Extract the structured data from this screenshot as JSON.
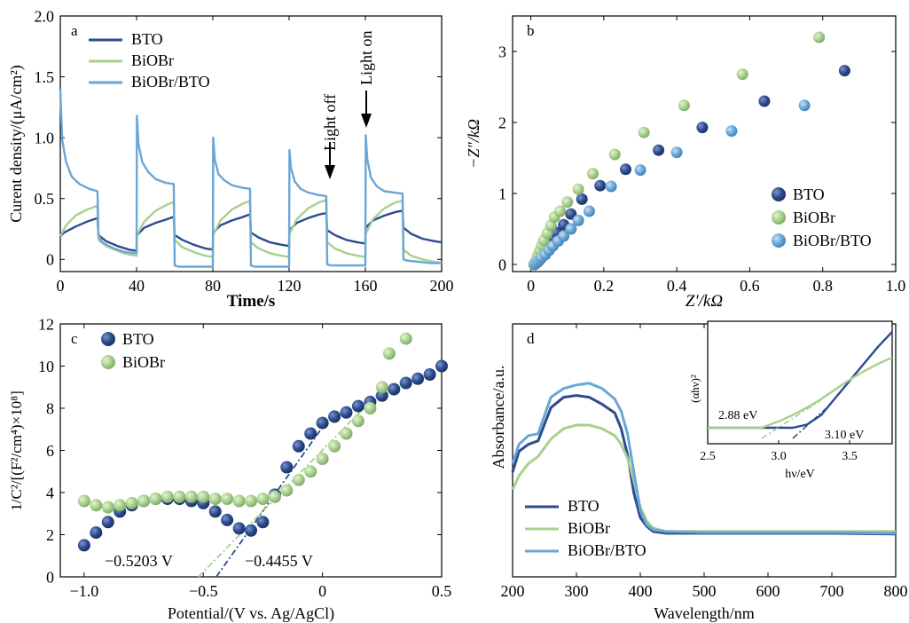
{
  "colors": {
    "bto": "#2d4b8e",
    "biobr": "#a8d08d",
    "composite": "#6aa6d6"
  },
  "chart_data": [
    {
      "panel": "a",
      "type": "line",
      "xlabel": "Time/s",
      "ylabel": "Curent density/(μA/cm²)",
      "xlim": [
        0,
        200
      ],
      "ylim": [
        -0.1,
        2.0
      ],
      "xticks": [
        "0",
        "40",
        "80",
        "120",
        "160",
        "200"
      ],
      "yticks": [
        "0",
        "0.5",
        "1.0",
        "1.5",
        "2.0"
      ],
      "legend": {
        "position": "top-left",
        "entries": [
          "BTO",
          "BiOBr",
          "BiOBr/BTO"
        ]
      },
      "annotations": [
        "Light off",
        "Light on"
      ],
      "series": [
        {
          "name": "BTO",
          "x": [
            0,
            2,
            8,
            14,
            19.5,
            20,
            24,
            30,
            36,
            40,
            40.2,
            44,
            50,
            56,
            59.5,
            60,
            64,
            70,
            76,
            80,
            80.2,
            84,
            90,
            96,
            99.5,
            100,
            104,
            110,
            116,
            120,
            120.2,
            124,
            130,
            136,
            139.5,
            140,
            144,
            150,
            156,
            160,
            160.2,
            164,
            170,
            176,
            179.5,
            180,
            184,
            190,
            196,
            200
          ],
          "y": [
            0.19,
            0.22,
            0.27,
            0.31,
            0.34,
            0.2,
            0.15,
            0.11,
            0.08,
            0.07,
            0.2,
            0.26,
            0.3,
            0.33,
            0.35,
            0.2,
            0.16,
            0.12,
            0.09,
            0.08,
            0.22,
            0.28,
            0.32,
            0.35,
            0.37,
            0.22,
            0.18,
            0.14,
            0.12,
            0.11,
            0.24,
            0.3,
            0.34,
            0.37,
            0.38,
            0.24,
            0.2,
            0.16,
            0.14,
            0.13,
            0.26,
            0.32,
            0.36,
            0.39,
            0.4,
            0.26,
            0.21,
            0.17,
            0.15,
            0.14
          ]
        },
        {
          "name": "BiOBr",
          "x": [
            0,
            3,
            8,
            14,
            19.5,
            20,
            24,
            30,
            36,
            40,
            40.2,
            44,
            50,
            56,
            59.5,
            60,
            64,
            70,
            76,
            80,
            80.2,
            84,
            90,
            96,
            99.5,
            100,
            104,
            110,
            116,
            120,
            120.2,
            124,
            130,
            136,
            139.5,
            140,
            144,
            150,
            156,
            160,
            160.2,
            164,
            170,
            176,
            179.5,
            180,
            184,
            190,
            196,
            200
          ],
          "y": [
            0.19,
            0.28,
            0.36,
            0.41,
            0.44,
            0.16,
            0.11,
            0.07,
            0.04,
            0.03,
            0.2,
            0.31,
            0.4,
            0.45,
            0.47,
            0.16,
            0.1,
            0.06,
            0.03,
            0.02,
            0.2,
            0.32,
            0.41,
            0.46,
            0.48,
            0.14,
            0.09,
            0.05,
            0.03,
            0.02,
            0.21,
            0.33,
            0.42,
            0.47,
            0.49,
            0.14,
            0.09,
            0.05,
            0.03,
            0.02,
            0.21,
            0.33,
            0.42,
            0.47,
            0.48,
            0.08,
            0.03,
            0.0,
            -0.02,
            -0.03
          ]
        },
        {
          "name": "BiOBr/BTO",
          "x": [
            0,
            1,
            3,
            6,
            10,
            15,
            19.5,
            20,
            22,
            28,
            34,
            40,
            40.2,
            41,
            43,
            46,
            50,
            55,
            59.5,
            60,
            62,
            68,
            74,
            80,
            80.2,
            81,
            83,
            86,
            90,
            95,
            99.5,
            100,
            102,
            108,
            114,
            120,
            120.2,
            121,
            123,
            126,
            130,
            135,
            139.5,
            140,
            142,
            148,
            154,
            160,
            160.2,
            161,
            163,
            166,
            170,
            175,
            179.5,
            180,
            182,
            188,
            194,
            200
          ],
          "y": [
            1.4,
            0.98,
            0.8,
            0.68,
            0.62,
            0.58,
            0.56,
            0.2,
            0.14,
            0.09,
            0.06,
            0.05,
            1.18,
            0.95,
            0.8,
            0.72,
            0.66,
            0.63,
            0.62,
            -0.05,
            -0.06,
            -0.06,
            -0.06,
            -0.06,
            1.0,
            0.82,
            0.7,
            0.65,
            0.61,
            0.59,
            0.58,
            -0.05,
            -0.06,
            -0.06,
            -0.06,
            -0.06,
            0.9,
            0.75,
            0.64,
            0.58,
            0.55,
            0.53,
            0.52,
            -0.04,
            -0.05,
            -0.05,
            -0.05,
            -0.05,
            1.02,
            0.82,
            0.67,
            0.6,
            0.56,
            0.55,
            0.54,
            0.0,
            -0.01,
            -0.02,
            -0.03,
            -0.03
          ]
        }
      ]
    },
    {
      "panel": "b",
      "type": "scatter",
      "xlabel": "Z′/kΩ",
      "ylabel": "−Z″/kΩ",
      "xlim": [
        -0.05,
        1.0
      ],
      "ylim": [
        -0.1,
        3.5
      ],
      "xticks": [
        "0",
        "0.2",
        "0.4",
        "0.6",
        "0.8",
        "1.0"
      ],
      "yticks": [
        "0",
        "1",
        "2",
        "3"
      ],
      "legend": {
        "position": "bottom-right",
        "entries": [
          "BTO",
          "BiOBr",
          "BiOBr/BTO"
        ]
      },
      "series": [
        {
          "name": "BTO",
          "x": [
            0.01,
            0.015,
            0.02,
            0.025,
            0.03,
            0.035,
            0.04,
            0.05,
            0.06,
            0.07,
            0.09,
            0.11,
            0.14,
            0.19,
            0.26,
            0.35,
            0.47,
            0.64,
            0.86
          ],
          "y": [
            0.0,
            0.02,
            0.05,
            0.09,
            0.13,
            0.17,
            0.22,
            0.29,
            0.37,
            0.45,
            0.56,
            0.71,
            0.92,
            1.11,
            1.34,
            1.61,
            1.93,
            2.3,
            2.73
          ]
        },
        {
          "name": "BiOBr",
          "x": [
            0.008,
            0.012,
            0.016,
            0.02,
            0.025,
            0.03,
            0.035,
            0.045,
            0.055,
            0.065,
            0.08,
            0.1,
            0.13,
            0.17,
            0.23,
            0.31,
            0.42,
            0.58,
            0.79
          ],
          "y": [
            0.0,
            0.03,
            0.08,
            0.14,
            0.2,
            0.27,
            0.34,
            0.44,
            0.55,
            0.67,
            0.75,
            0.88,
            1.06,
            1.28,
            1.55,
            1.86,
            2.24,
            2.68,
            3.2
          ]
        },
        {
          "name": "BiOBr/BTO",
          "x": [
            0.01,
            0.015,
            0.02,
            0.025,
            0.03,
            0.04,
            0.05,
            0.06,
            0.075,
            0.09,
            0.11,
            0.13,
            0.16,
            0.22,
            0.3,
            0.4,
            0.55,
            0.75
          ],
          "y": [
            0.0,
            0.02,
            0.04,
            0.07,
            0.1,
            0.14,
            0.2,
            0.26,
            0.33,
            0.4,
            0.5,
            0.62,
            0.75,
            1.1,
            1.33,
            1.58,
            1.88,
            2.24
          ]
        }
      ]
    },
    {
      "panel": "c",
      "type": "scatter",
      "xlabel": "Potential/(V vs. Ag/AgCl)",
      "ylabel": "1/C²/[(F²/cm⁴)×10⁸]",
      "xlim": [
        -1.1,
        0.5
      ],
      "ylim": [
        0,
        12
      ],
      "xticks": [
        "−1.0",
        "−0.5",
        "0",
        "0.5"
      ],
      "yticks": [
        "0",
        "2",
        "4",
        "6",
        "8",
        "10",
        "12"
      ],
      "legend": {
        "position": "top-left",
        "entries": [
          "BTO",
          "BiOBr"
        ]
      },
      "annotations": [
        "−0.5203 V",
        "−0.4455 V"
      ],
      "fits": [
        {
          "series": "BTO",
          "x": [
            -0.4455,
            0.05
          ],
          "y": [
            0,
            7.9
          ]
        },
        {
          "series": "BiOBr",
          "x": [
            -0.5203,
            0.25
          ],
          "y": [
            0,
            8.9
          ]
        }
      ],
      "series": [
        {
          "name": "BTO",
          "x": [
            -1.0,
            -0.95,
            -0.9,
            -0.85,
            -0.8,
            -0.75,
            -0.7,
            -0.65,
            -0.6,
            -0.55,
            -0.5,
            -0.45,
            -0.4,
            -0.35,
            -0.3,
            -0.25,
            -0.2,
            -0.15,
            -0.1,
            -0.05,
            0.0,
            0.05,
            0.1,
            0.15,
            0.2,
            0.25,
            0.3,
            0.35,
            0.4,
            0.45,
            0.5
          ],
          "y": [
            1.5,
            2.1,
            2.6,
            3.1,
            3.4,
            3.6,
            3.7,
            3.7,
            3.7,
            3.6,
            3.5,
            3.1,
            2.7,
            2.3,
            2.2,
            2.6,
            3.9,
            5.2,
            6.2,
            6.8,
            7.3,
            7.6,
            7.8,
            8.1,
            8.3,
            8.6,
            8.9,
            9.2,
            9.4,
            9.6,
            10.0
          ]
        },
        {
          "name": "BiOBr",
          "x": [
            -1.0,
            -0.95,
            -0.9,
            -0.85,
            -0.8,
            -0.75,
            -0.7,
            -0.65,
            -0.6,
            -0.55,
            -0.5,
            -0.45,
            -0.4,
            -0.35,
            -0.3,
            -0.25,
            -0.2,
            -0.15,
            -0.1,
            -0.05,
            0.0,
            0.05,
            0.1,
            0.15,
            0.2,
            0.25,
            0.28,
            0.35
          ],
          "y": [
            3.6,
            3.4,
            3.3,
            3.4,
            3.5,
            3.6,
            3.7,
            3.8,
            3.8,
            3.8,
            3.8,
            3.7,
            3.7,
            3.6,
            3.6,
            3.7,
            3.8,
            4.1,
            4.6,
            5.0,
            5.6,
            6.2,
            6.8,
            7.4,
            8.0,
            9.0,
            10.6,
            11.3
          ]
        }
      ]
    },
    {
      "panel": "d",
      "type": "line",
      "xlabel": "Wavelength/nm",
      "ylabel": "Absorbance/a.u.",
      "xlim": [
        200,
        800
      ],
      "ylim": [
        0,
        1
      ],
      "xticks": [
        "200",
        "300",
        "400",
        "500",
        "600",
        "700",
        "800"
      ],
      "yticks": [],
      "legend": {
        "position": "bottom-left",
        "entries": [
          "BTO",
          "BiOBr",
          "BiOBr/BTO"
        ]
      },
      "series": [
        {
          "name": "BTO",
          "x": [
            200,
            210,
            225,
            240,
            260,
            280,
            300,
            320,
            340,
            360,
            370,
            380,
            390,
            400,
            410,
            420,
            440,
            500,
            600,
            700,
            800
          ],
          "y": [
            0.4,
            0.52,
            0.56,
            0.58,
            0.77,
            0.83,
            0.84,
            0.83,
            0.79,
            0.74,
            0.65,
            0.5,
            0.28,
            0.14,
            0.09,
            0.06,
            0.05,
            0.05,
            0.05,
            0.05,
            0.045
          ]
        },
        {
          "name": "BiOBr",
          "x": [
            200,
            210,
            225,
            240,
            260,
            280,
            300,
            320,
            340,
            360,
            370,
            380,
            390,
            400,
            410,
            420,
            440,
            500,
            600,
            700,
            800
          ],
          "y": [
            0.3,
            0.38,
            0.45,
            0.49,
            0.59,
            0.65,
            0.67,
            0.67,
            0.65,
            0.61,
            0.56,
            0.48,
            0.35,
            0.2,
            0.12,
            0.08,
            0.06,
            0.06,
            0.06,
            0.06,
            0.06
          ]
        },
        {
          "name": "BiOBr/BTO",
          "x": [
            200,
            210,
            225,
            240,
            260,
            280,
            300,
            320,
            340,
            360,
            370,
            380,
            390,
            400,
            410,
            420,
            440,
            500,
            600,
            700,
            800
          ],
          "y": [
            0.45,
            0.56,
            0.61,
            0.62,
            0.83,
            0.88,
            0.9,
            0.91,
            0.88,
            0.82,
            0.75,
            0.62,
            0.4,
            0.18,
            0.1,
            0.07,
            0.06,
            0.055,
            0.055,
            0.055,
            0.05
          ]
        }
      ],
      "inset": {
        "xlabel": "hν/eV",
        "ylabel": "(αhν)²",
        "xlim": [
          2.5,
          3.8
        ],
        "xticks": [
          "2.5",
          "3.0",
          "3.5"
        ],
        "annotations": [
          "2.88 eV",
          "3.10 eV"
        ],
        "series": [
          {
            "name": "BTO",
            "x": [
              2.5,
              3.1,
              3.2,
              3.3,
              3.4,
              3.5,
              3.6,
              3.7,
              3.8
            ],
            "y": [
              0.0,
              0.0,
              0.03,
              0.12,
              0.28,
              0.44,
              0.6,
              0.76,
              0.9
            ]
          },
          {
            "name": "BiOBr",
            "x": [
              2.5,
              2.88,
              3.0,
              3.1,
              3.2,
              3.3,
              3.4,
              3.5,
              3.6,
              3.7,
              3.8
            ],
            "y": [
              0.0,
              0.0,
              0.06,
              0.12,
              0.19,
              0.27,
              0.36,
              0.45,
              0.53,
              0.6,
              0.66
            ]
          }
        ],
        "fits": [
          {
            "series": "BTO",
            "x": [
              3.1,
              3.35
            ],
            "y": [
              -0.1,
              0.2
            ]
          },
          {
            "series": "BiOBr",
            "x": [
              2.88,
              3.3
            ],
            "y": [
              -0.1,
              0.26
            ]
          }
        ]
      }
    }
  ]
}
